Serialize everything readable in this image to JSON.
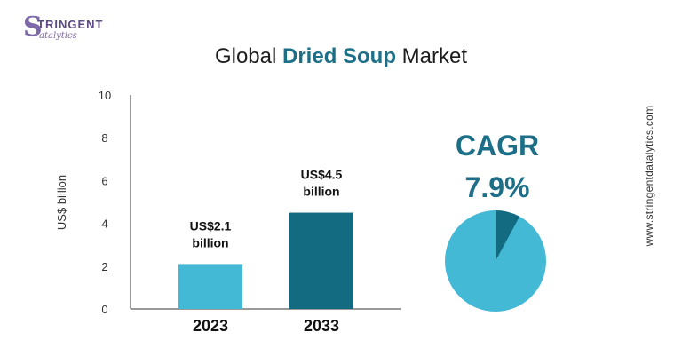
{
  "logo": {
    "top_text": "TRINGENT",
    "bottom_text": "atalytics",
    "mark": "S"
  },
  "title": {
    "prefix": "Global ",
    "highlight": "Dried Soup",
    "suffix": " Market"
  },
  "cagr": {
    "label": "CAGR",
    "value": "7.9%",
    "pie_share": 0.079
  },
  "website": "www.stringentdatalytics.com",
  "colors": {
    "bar_2023": "#44b9d6",
    "bar_2033": "#136b82",
    "accent_text": "#1c6f87",
    "pie_main": "#44b9d6",
    "pie_slice": "#136b82",
    "logo": "#7d68a8"
  },
  "chart_data": {
    "type": "bar",
    "categories": [
      "2023",
      "2033"
    ],
    "values": [
      2.1,
      4.5
    ],
    "data_labels": [
      "US$2.1\nbillion",
      "US$4.5\nbillion"
    ],
    "ylabel": "US$ billion",
    "ylim": [
      0,
      10
    ],
    "yticks": [
      0,
      2,
      4,
      6,
      8,
      10
    ],
    "grid": false
  }
}
